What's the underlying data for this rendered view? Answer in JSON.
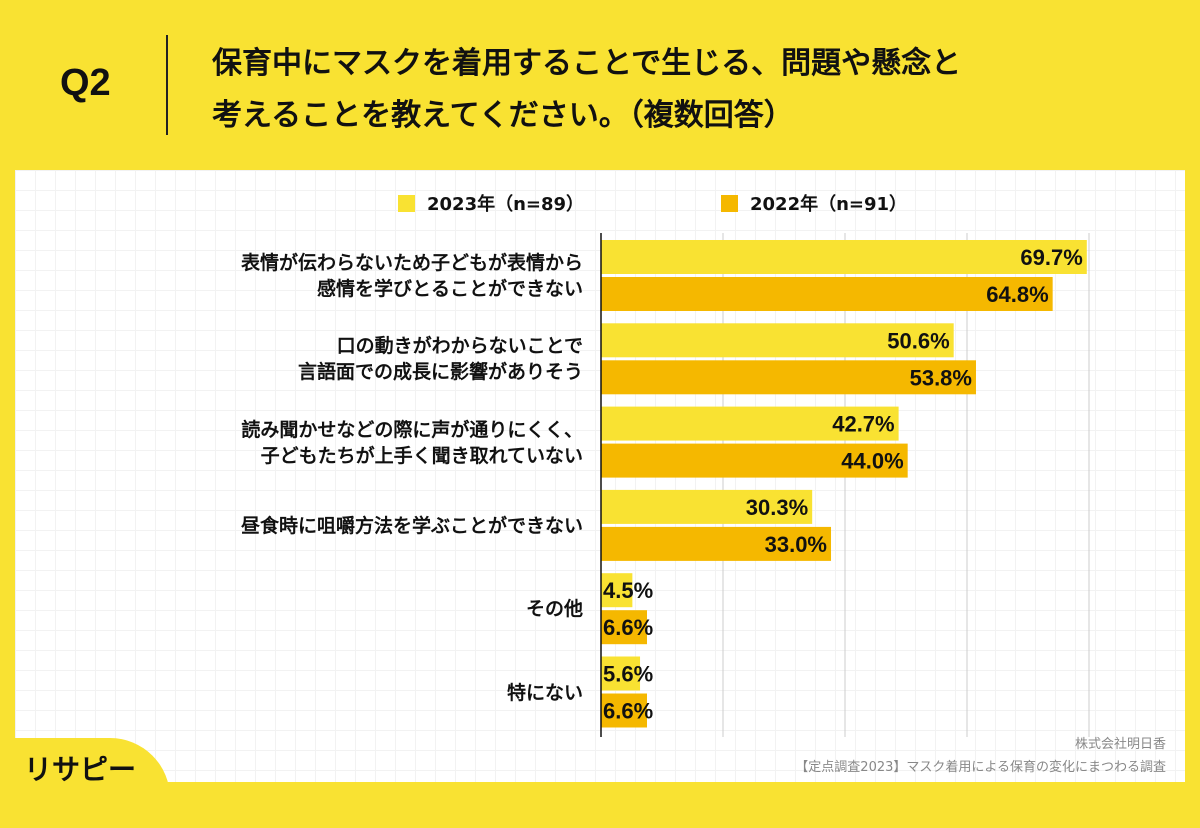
{
  "header": {
    "q_label": "Q2",
    "title_line1": "保育中にマスクを着用することで生じる、問題や懸念と",
    "title_line2": "考えることを教えてください。（複数回答）"
  },
  "chart_data": {
    "type": "bar",
    "orientation": "horizontal",
    "categories": [
      [
        "表情が伝わらないため子どもが表情から",
        "感情を学びとることができない"
      ],
      [
        "口の動きがわからないことで",
        "言語面での成長に影響がありそう"
      ],
      [
        "読み聞かせなどの際に声が通りにくく、",
        "子どもたちが上手く聞き取れていない"
      ],
      [
        "昼食時に咀嚼方法を学ぶことができない"
      ],
      [
        "その他"
      ],
      [
        "特にない"
      ]
    ],
    "series": [
      {
        "name": "2023年（n=89）",
        "color": "#F9E232",
        "values": [
          69.7,
          50.6,
          42.7,
          30.3,
          4.5,
          5.6
        ]
      },
      {
        "name": "2022年（n=91）",
        "color": "#F5B800",
        "values": [
          64.8,
          53.8,
          44.0,
          33.0,
          6.6,
          6.6
        ]
      }
    ],
    "unit": "%",
    "legend": "top",
    "grid": true
  },
  "footer": {
    "logo": "リサピー",
    "company": "株式会社明日香",
    "source": "【定点調査2023】マスク着用による保育の変化にまつわる調査"
  }
}
